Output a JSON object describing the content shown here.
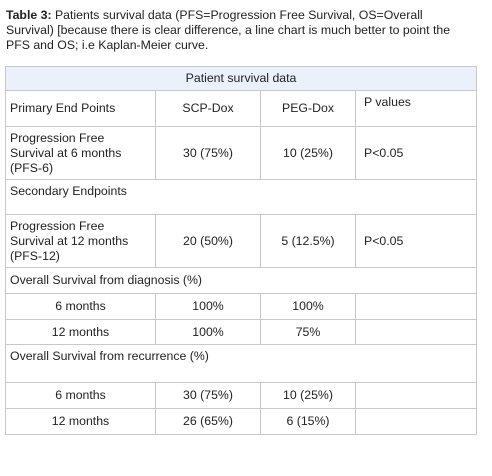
{
  "caption": {
    "label": "Table 3:",
    "text": " Patients survival data (PFS=Progression Free Survival, OS=Overall Survival) [because there is clear difference, a line chart is much better to point the PFS and OS; i.e Kaplan-Meier curve."
  },
  "table": {
    "header": "Patient survival data",
    "rows": [
      [
        "Primary End Points",
        "SCP-Dox",
        "PEG-Dox",
        "P values"
      ],
      [
        "Progression Free Survival at 6 months (PFS-6)",
        "30 (75%)",
        "10 (25%)",
        "P<0.05"
      ],
      [
        "Secondary Endpoints"
      ],
      [
        "Progression Free Survival at 12 months (PFS-12)",
        "20 (50%)",
        "5 (12.5%)",
        "P<0.05"
      ],
      [
        "Overall Survival from diagnosis (%)"
      ],
      [
        "6 months",
        "100%",
        "100%"
      ],
      [
        "12 months",
        "100%",
        "75%"
      ],
      [
        "Overall Survival from recurrence (%)"
      ],
      [
        "6 months",
        "30 (75%)",
        "10 (25%)"
      ],
      [
        "12 months",
        "26 (65%)",
        "6 (15%)"
      ]
    ]
  }
}
